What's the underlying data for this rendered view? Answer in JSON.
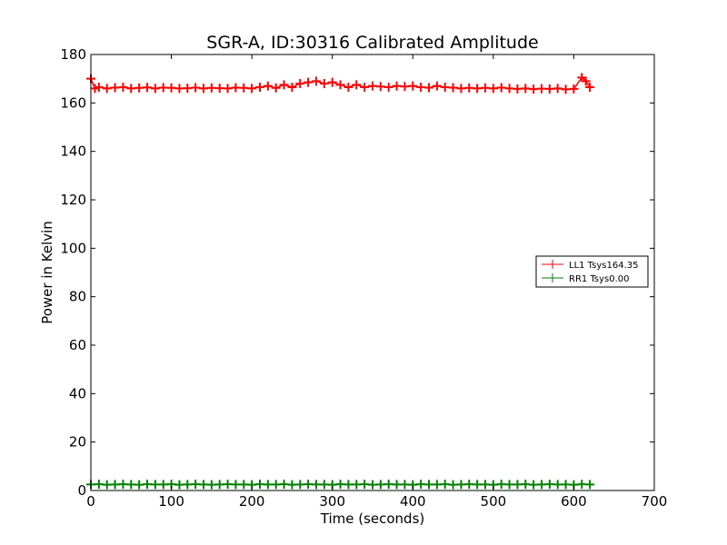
{
  "chart_data": {
    "type": "scatter",
    "title": "SGR-A, ID:30316 Calibrated Amplitude",
    "xlabel": "Time (seconds)",
    "ylabel": "Power in Kelvin",
    "xlim": [
      0,
      700
    ],
    "ylim": [
      0,
      180
    ],
    "xticks": [
      0,
      100,
      200,
      300,
      400,
      500,
      600,
      700
    ],
    "yticks": [
      0,
      20,
      40,
      60,
      80,
      100,
      120,
      140,
      160,
      180
    ],
    "xtick_labels": [
      "0",
      "100",
      "200",
      "300",
      "400",
      "500",
      "600",
      "700"
    ],
    "ytick_labels": [
      "0",
      "20",
      "40",
      "60",
      "80",
      "100",
      "120",
      "140",
      "160",
      "180"
    ],
    "grid": false,
    "legend_position": "center-right",
    "marker": "+",
    "series": [
      {
        "name": "LL1 Tsys164.35",
        "color": "#ff0000",
        "x": [
          0,
          5,
          10,
          20,
          30,
          40,
          50,
          60,
          70,
          80,
          90,
          100,
          110,
          120,
          130,
          140,
          150,
          160,
          170,
          180,
          190,
          200,
          210,
          220,
          230,
          240,
          250,
          260,
          270,
          280,
          290,
          300,
          310,
          320,
          330,
          340,
          350,
          360,
          370,
          380,
          390,
          400,
          410,
          420,
          430,
          440,
          450,
          460,
          470,
          480,
          490,
          500,
          510,
          520,
          530,
          540,
          550,
          560,
          570,
          580,
          590,
          600,
          610,
          615,
          620
        ],
        "y": [
          170,
          166,
          166.5,
          166,
          166.3,
          166.5,
          166,
          166.2,
          166.4,
          166,
          166.3,
          166.2,
          166,
          166.1,
          166.3,
          166,
          166.2,
          166.1,
          166,
          166.3,
          166.2,
          166,
          166.5,
          167,
          166.2,
          167.5,
          166.5,
          168,
          168.5,
          169,
          168,
          168.5,
          167.5,
          166.5,
          167.5,
          166.5,
          167,
          166.8,
          166.5,
          167,
          166.8,
          167,
          166.5,
          166.3,
          167,
          166.5,
          166.3,
          166,
          166.2,
          166,
          166.2,
          166,
          166.3,
          166,
          165.8,
          166,
          165.7,
          165.9,
          165.8,
          166,
          165.6,
          165.8,
          170.5,
          169,
          166.5
        ]
      },
      {
        "name": "RR1 Tsys0.00",
        "color": "#008000",
        "x": [
          0,
          10,
          20,
          30,
          40,
          50,
          60,
          70,
          80,
          90,
          100,
          110,
          120,
          130,
          140,
          150,
          160,
          170,
          180,
          190,
          200,
          210,
          220,
          230,
          240,
          250,
          260,
          270,
          280,
          290,
          300,
          310,
          320,
          330,
          340,
          350,
          360,
          370,
          380,
          390,
          400,
          410,
          420,
          430,
          440,
          450,
          460,
          470,
          480,
          490,
          500,
          510,
          520,
          530,
          540,
          550,
          560,
          570,
          580,
          590,
          600,
          610,
          620
        ],
        "y": [
          2.5,
          2.6,
          2.4,
          2.5,
          2.6,
          2.5,
          2.4,
          2.6,
          2.5,
          2.5,
          2.6,
          2.4,
          2.5,
          2.6,
          2.5,
          2.4,
          2.5,
          2.6,
          2.5,
          2.5,
          2.4,
          2.6,
          2.5,
          2.5,
          2.6,
          2.4,
          2.5,
          2.6,
          2.5,
          2.5,
          2.4,
          2.6,
          2.5,
          2.5,
          2.6,
          2.4,
          2.5,
          2.6,
          2.5,
          2.5,
          2.4,
          2.6,
          2.5,
          2.5,
          2.6,
          2.4,
          2.5,
          2.6,
          2.5,
          2.5,
          2.4,
          2.6,
          2.5,
          2.5,
          2.6,
          2.4,
          2.5,
          2.6,
          2.5,
          2.5,
          2.4,
          2.6,
          2.5
        ]
      }
    ]
  }
}
